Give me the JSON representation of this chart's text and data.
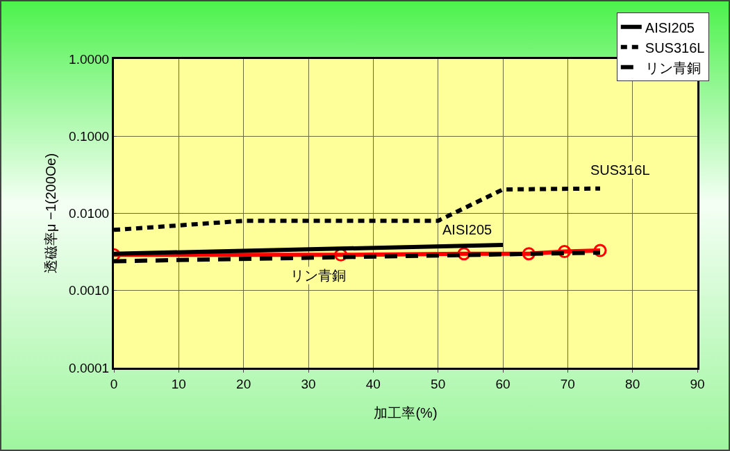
{
  "chart_data": {
    "type": "line",
    "xlabel": "加工率(%)",
    "ylabel": "透磁率μ −1(200Oe)",
    "series": [
      {
        "color": "#ff0000",
        "marker": "circle",
        "line_style": "solid",
        "x": [
          0,
          35,
          54,
          64,
          69.5,
          75
        ],
        "values": [
          0.0029,
          0.0029,
          0.003,
          0.003,
          0.0032,
          0.0033
        ]
      },
      {
        "name": "AISI205",
        "color": "#000000",
        "marker": "none",
        "line_style": "solid",
        "x": [
          0,
          60
        ],
        "values": [
          0.003,
          0.0039
        ]
      },
      {
        "name": "SUS316L",
        "color": "#000000",
        "marker": "none",
        "line_style": "dotted",
        "x": [
          0,
          20,
          50,
          60,
          75
        ],
        "values": [
          0.0061,
          0.008,
          0.008,
          0.0204,
          0.021
        ]
      },
      {
        "name": "リン青銅",
        "color": "#000000",
        "marker": "none",
        "line_style": "dashed",
        "x": [
          0,
          75
        ],
        "values": [
          0.0024,
          0.0031
        ]
      }
    ],
    "annotations": [
      "SUS316L",
      "AISI205",
      "リン青銅"
    ],
    "xlim": [
      0,
      90
    ],
    "xticks": [
      0,
      10,
      20,
      30,
      40,
      50,
      60,
      70,
      80,
      90
    ],
    "ylim": [
      0.0001,
      1
    ],
    "yticks": [
      {
        "value": 0.0001,
        "label": "0.0001"
      },
      {
        "value": 0.001,
        "label": "0.0010"
      },
      {
        "value": 0.01,
        "label": "0.0100"
      },
      {
        "value": 0.1,
        "label": "0.1000"
      },
      {
        "value": 1,
        "label": "1.0000"
      }
    ],
    "log": "y",
    "grid": true,
    "legend": "top right"
  }
}
